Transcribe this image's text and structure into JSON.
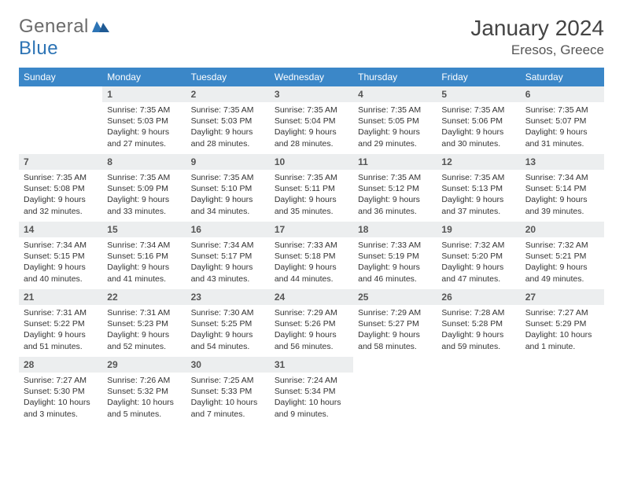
{
  "brand": {
    "part1": "General",
    "part2": "Blue"
  },
  "title": "January 2024",
  "location": "Eresos, Greece",
  "style": {
    "header_bg": "#3b87c8",
    "header_fg": "#ffffff",
    "daynum_bg": "#eceeef",
    "daynum_fg": "#555555",
    "border_color": "#2d74b5",
    "body_fg": "#333333",
    "title_fg": "#444444",
    "body_fontsize": 10.5,
    "header_fontsize": 12
  },
  "day_headers": [
    "Sunday",
    "Monday",
    "Tuesday",
    "Wednesday",
    "Thursday",
    "Friday",
    "Saturday"
  ],
  "weeks": [
    [
      null,
      {
        "n": "1",
        "sr": "7:35 AM",
        "ss": "5:03 PM",
        "dl": "9 hours and 27 minutes."
      },
      {
        "n": "2",
        "sr": "7:35 AM",
        "ss": "5:03 PM",
        "dl": "9 hours and 28 minutes."
      },
      {
        "n": "3",
        "sr": "7:35 AM",
        "ss": "5:04 PM",
        "dl": "9 hours and 28 minutes."
      },
      {
        "n": "4",
        "sr": "7:35 AM",
        "ss": "5:05 PM",
        "dl": "9 hours and 29 minutes."
      },
      {
        "n": "5",
        "sr": "7:35 AM",
        "ss": "5:06 PM",
        "dl": "9 hours and 30 minutes."
      },
      {
        "n": "6",
        "sr": "7:35 AM",
        "ss": "5:07 PM",
        "dl": "9 hours and 31 minutes."
      }
    ],
    [
      {
        "n": "7",
        "sr": "7:35 AM",
        "ss": "5:08 PM",
        "dl": "9 hours and 32 minutes."
      },
      {
        "n": "8",
        "sr": "7:35 AM",
        "ss": "5:09 PM",
        "dl": "9 hours and 33 minutes."
      },
      {
        "n": "9",
        "sr": "7:35 AM",
        "ss": "5:10 PM",
        "dl": "9 hours and 34 minutes."
      },
      {
        "n": "10",
        "sr": "7:35 AM",
        "ss": "5:11 PM",
        "dl": "9 hours and 35 minutes."
      },
      {
        "n": "11",
        "sr": "7:35 AM",
        "ss": "5:12 PM",
        "dl": "9 hours and 36 minutes."
      },
      {
        "n": "12",
        "sr": "7:35 AM",
        "ss": "5:13 PM",
        "dl": "9 hours and 37 minutes."
      },
      {
        "n": "13",
        "sr": "7:34 AM",
        "ss": "5:14 PM",
        "dl": "9 hours and 39 minutes."
      }
    ],
    [
      {
        "n": "14",
        "sr": "7:34 AM",
        "ss": "5:15 PM",
        "dl": "9 hours and 40 minutes."
      },
      {
        "n": "15",
        "sr": "7:34 AM",
        "ss": "5:16 PM",
        "dl": "9 hours and 41 minutes."
      },
      {
        "n": "16",
        "sr": "7:34 AM",
        "ss": "5:17 PM",
        "dl": "9 hours and 43 minutes."
      },
      {
        "n": "17",
        "sr": "7:33 AM",
        "ss": "5:18 PM",
        "dl": "9 hours and 44 minutes."
      },
      {
        "n": "18",
        "sr": "7:33 AM",
        "ss": "5:19 PM",
        "dl": "9 hours and 46 minutes."
      },
      {
        "n": "19",
        "sr": "7:32 AM",
        "ss": "5:20 PM",
        "dl": "9 hours and 47 minutes."
      },
      {
        "n": "20",
        "sr": "7:32 AM",
        "ss": "5:21 PM",
        "dl": "9 hours and 49 minutes."
      }
    ],
    [
      {
        "n": "21",
        "sr": "7:31 AM",
        "ss": "5:22 PM",
        "dl": "9 hours and 51 minutes."
      },
      {
        "n": "22",
        "sr": "7:31 AM",
        "ss": "5:23 PM",
        "dl": "9 hours and 52 minutes."
      },
      {
        "n": "23",
        "sr": "7:30 AM",
        "ss": "5:25 PM",
        "dl": "9 hours and 54 minutes."
      },
      {
        "n": "24",
        "sr": "7:29 AM",
        "ss": "5:26 PM",
        "dl": "9 hours and 56 minutes."
      },
      {
        "n": "25",
        "sr": "7:29 AM",
        "ss": "5:27 PM",
        "dl": "9 hours and 58 minutes."
      },
      {
        "n": "26",
        "sr": "7:28 AM",
        "ss": "5:28 PM",
        "dl": "9 hours and 59 minutes."
      },
      {
        "n": "27",
        "sr": "7:27 AM",
        "ss": "5:29 PM",
        "dl": "10 hours and 1 minute."
      }
    ],
    [
      {
        "n": "28",
        "sr": "7:27 AM",
        "ss": "5:30 PM",
        "dl": "10 hours and 3 minutes."
      },
      {
        "n": "29",
        "sr": "7:26 AM",
        "ss": "5:32 PM",
        "dl": "10 hours and 5 minutes."
      },
      {
        "n": "30",
        "sr": "7:25 AM",
        "ss": "5:33 PM",
        "dl": "10 hours and 7 minutes."
      },
      {
        "n": "31",
        "sr": "7:24 AM",
        "ss": "5:34 PM",
        "dl": "10 hours and 9 minutes."
      },
      null,
      null,
      null
    ]
  ],
  "labels": {
    "sunrise": "Sunrise: ",
    "sunset": "Sunset: ",
    "daylight": "Daylight: "
  }
}
